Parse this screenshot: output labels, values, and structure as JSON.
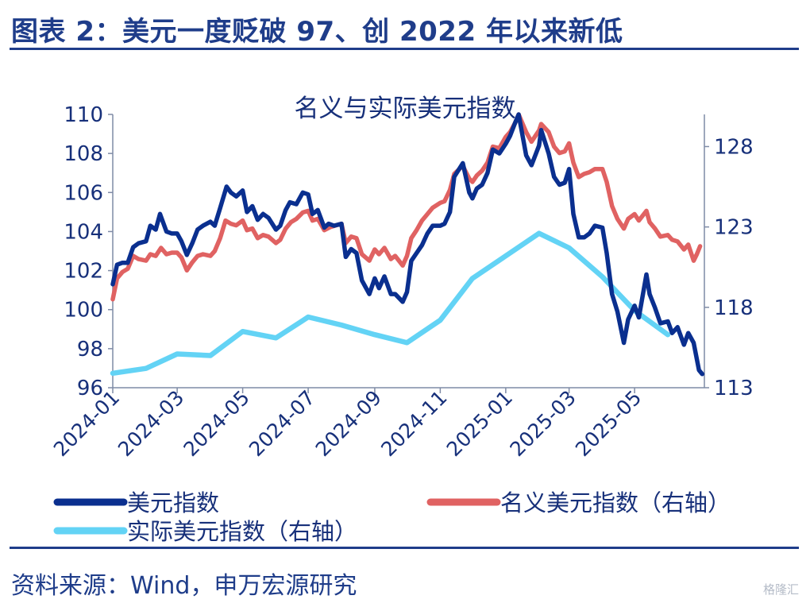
{
  "figure": {
    "label": "图表 2：美元一度贬破 97、创 2022 年以来新低",
    "source": "资料来源：Wind，申万宏源研究",
    "watermark": "格隆汇"
  },
  "colors": {
    "dxy": "#0a2f8f",
    "nominal": "#e06262",
    "real": "#63d3f5",
    "heading": "#1f3d8a",
    "text": "#17307a"
  },
  "chart_data": {
    "type": "line",
    "title": "名义与实际美元指数",
    "x_ticks": [
      "2024-01",
      "2024-03",
      "2024-05",
      "2024-07",
      "2024-09",
      "2024-11",
      "2025-01",
      "2025-03",
      "2025-05"
    ],
    "x_range": [
      "2024-01-01",
      "2025-07-05"
    ],
    "y_left": {
      "range": [
        96,
        110
      ],
      "ticks": [
        96,
        98,
        100,
        102,
        104,
        106,
        108,
        110
      ]
    },
    "y_right": {
      "range": [
        113,
        130
      ],
      "ticks": [
        113,
        118,
        123,
        128
      ]
    },
    "legend_position": "bottom",
    "series": [
      {
        "name": "美元指数",
        "axis": "left",
        "points": [
          [
            "2024-01-01",
            101.3
          ],
          [
            "2024-01-05",
            102.3
          ],
          [
            "2024-01-10",
            102.4
          ],
          [
            "2024-01-15",
            102.4
          ],
          [
            "2024-01-20",
            103.2
          ],
          [
            "2024-01-25",
            103.4
          ],
          [
            "2024-02-01",
            103.5
          ],
          [
            "2024-02-05",
            104.3
          ],
          [
            "2024-02-10",
            104.1
          ],
          [
            "2024-02-14",
            104.9
          ],
          [
            "2024-02-20",
            104.0
          ],
          [
            "2024-02-25",
            103.9
          ],
          [
            "2024-03-01",
            103.9
          ],
          [
            "2024-03-05",
            103.5
          ],
          [
            "2024-03-10",
            102.8
          ],
          [
            "2024-03-15",
            103.4
          ],
          [
            "2024-03-20",
            104.1
          ],
          [
            "2024-03-25",
            104.3
          ],
          [
            "2024-04-01",
            104.5
          ],
          [
            "2024-04-05",
            104.3
          ],
          [
            "2024-04-10",
            105.2
          ],
          [
            "2024-04-16",
            106.3
          ],
          [
            "2024-04-20",
            106.0
          ],
          [
            "2024-04-25",
            105.8
          ],
          [
            "2024-05-01",
            106.1
          ],
          [
            "2024-05-05",
            105.0
          ],
          [
            "2024-05-10",
            105.3
          ],
          [
            "2024-05-15",
            104.6
          ],
          [
            "2024-05-20",
            104.9
          ],
          [
            "2024-05-25",
            104.7
          ],
          [
            "2024-06-01",
            104.1
          ],
          [
            "2024-06-05",
            104.3
          ],
          [
            "2024-06-10",
            105.1
          ],
          [
            "2024-06-14",
            105.5
          ],
          [
            "2024-06-20",
            105.4
          ],
          [
            "2024-06-26",
            106.0
          ],
          [
            "2024-07-01",
            105.9
          ],
          [
            "2024-07-05",
            104.9
          ],
          [
            "2024-07-10",
            105.1
          ],
          [
            "2024-07-16",
            104.2
          ],
          [
            "2024-07-20",
            104.4
          ],
          [
            "2024-07-25",
            104.3
          ],
          [
            "2024-08-01",
            104.4
          ],
          [
            "2024-08-05",
            102.7
          ],
          [
            "2024-08-10",
            103.1
          ],
          [
            "2024-08-15",
            102.9
          ],
          [
            "2024-08-20",
            101.5
          ],
          [
            "2024-08-27",
            100.8
          ],
          [
            "2024-09-01",
            101.6
          ],
          [
            "2024-09-05",
            101.1
          ],
          [
            "2024-09-10",
            101.7
          ],
          [
            "2024-09-16",
            100.8
          ],
          [
            "2024-09-20",
            100.8
          ],
          [
            "2024-09-27",
            100.4
          ],
          [
            "2024-10-01",
            100.9
          ],
          [
            "2024-10-05",
            102.5
          ],
          [
            "2024-10-10",
            102.9
          ],
          [
            "2024-10-15",
            103.3
          ],
          [
            "2024-10-20",
            103.9
          ],
          [
            "2024-10-25",
            104.3
          ],
          [
            "2024-11-01",
            104.3
          ],
          [
            "2024-11-05",
            104.4
          ],
          [
            "2024-11-10",
            105.0
          ],
          [
            "2024-11-14",
            106.8
          ],
          [
            "2024-11-22",
            107.5
          ],
          [
            "2024-11-28",
            106.0
          ],
          [
            "2024-12-01",
            105.7
          ],
          [
            "2024-12-05",
            106.2
          ],
          [
            "2024-12-10",
            106.4
          ],
          [
            "2024-12-15",
            107.0
          ],
          [
            "2024-12-20",
            108.2
          ],
          [
            "2024-12-26",
            108.0
          ],
          [
            "2025-01-01",
            108.5
          ],
          [
            "2025-01-05",
            108.9
          ],
          [
            "2025-01-10",
            109.6
          ],
          [
            "2025-01-13",
            110.0
          ],
          [
            "2025-01-20",
            107.9
          ],
          [
            "2025-01-25",
            107.4
          ],
          [
            "2025-02-01",
            108.4
          ],
          [
            "2025-02-03",
            109.2
          ],
          [
            "2025-02-10",
            108.0
          ],
          [
            "2025-02-15",
            106.8
          ],
          [
            "2025-02-20",
            106.4
          ],
          [
            "2025-02-25",
            106.5
          ],
          [
            "2025-03-01",
            107.2
          ],
          [
            "2025-03-05",
            104.9
          ],
          [
            "2025-03-10",
            103.7
          ],
          [
            "2025-03-15",
            103.7
          ],
          [
            "2025-03-20",
            103.9
          ],
          [
            "2025-03-25",
            104.3
          ],
          [
            "2025-04-01",
            104.2
          ],
          [
            "2025-04-05",
            102.9
          ],
          [
            "2025-04-10",
            100.8
          ],
          [
            "2025-04-15",
            99.9
          ],
          [
            "2025-04-21",
            98.3
          ],
          [
            "2025-04-25",
            99.5
          ],
          [
            "2025-05-01",
            100.2
          ],
          [
            "2025-05-05",
            99.6
          ],
          [
            "2025-05-12",
            101.8
          ],
          [
            "2025-05-15",
            100.8
          ],
          [
            "2025-05-20",
            100.1
          ],
          [
            "2025-05-25",
            99.3
          ],
          [
            "2025-06-01",
            99.4
          ],
          [
            "2025-06-05",
            98.8
          ],
          [
            "2025-06-10",
            99.1
          ],
          [
            "2025-06-16",
            98.2
          ],
          [
            "2025-06-20",
            98.8
          ],
          [
            "2025-06-25",
            98.3
          ],
          [
            "2025-06-30",
            96.9
          ],
          [
            "2025-07-03",
            96.7
          ]
        ]
      },
      {
        "name": "名义美元指数（右轴）",
        "axis": "right",
        "points": [
          [
            "2024-01-01",
            118.5
          ],
          [
            "2024-01-05",
            119.8
          ],
          [
            "2024-01-10",
            120.2
          ],
          [
            "2024-01-15",
            120.4
          ],
          [
            "2024-01-20",
            121.2
          ],
          [
            "2024-01-25",
            121.0
          ],
          [
            "2024-02-01",
            120.9
          ],
          [
            "2024-02-05",
            121.3
          ],
          [
            "2024-02-10",
            121.2
          ],
          [
            "2024-02-15",
            121.7
          ],
          [
            "2024-02-20",
            121.3
          ],
          [
            "2024-02-25",
            121.4
          ],
          [
            "2024-03-01",
            121.4
          ],
          [
            "2024-03-05",
            121.1
          ],
          [
            "2024-03-10",
            120.3
          ],
          [
            "2024-03-15",
            120.8
          ],
          [
            "2024-03-20",
            121.2
          ],
          [
            "2024-03-25",
            121.3
          ],
          [
            "2024-04-01",
            121.2
          ],
          [
            "2024-04-05",
            121.5
          ],
          [
            "2024-04-10",
            122.3
          ],
          [
            "2024-04-15",
            123.4
          ],
          [
            "2024-04-20",
            123.2
          ],
          [
            "2024-04-25",
            123.1
          ],
          [
            "2024-05-01",
            123.4
          ],
          [
            "2024-05-05",
            122.8
          ],
          [
            "2024-05-10",
            122.9
          ],
          [
            "2024-05-15",
            122.3
          ],
          [
            "2024-05-20",
            122.5
          ],
          [
            "2024-05-25",
            122.4
          ],
          [
            "2024-06-01",
            122.0
          ],
          [
            "2024-06-05",
            122.2
          ],
          [
            "2024-06-10",
            122.9
          ],
          [
            "2024-06-15",
            123.3
          ],
          [
            "2024-06-20",
            123.5
          ],
          [
            "2024-06-26",
            123.9
          ],
          [
            "2024-07-01",
            124.0
          ],
          [
            "2024-07-05",
            123.4
          ],
          [
            "2024-07-10",
            123.5
          ],
          [
            "2024-07-16",
            122.8
          ],
          [
            "2024-07-22",
            123.0
          ],
          [
            "2024-07-27",
            123.1
          ],
          [
            "2024-08-01",
            123.2
          ],
          [
            "2024-08-05",
            122.0
          ],
          [
            "2024-08-10",
            122.4
          ],
          [
            "2024-08-15",
            122.3
          ],
          [
            "2024-08-20",
            121.3
          ],
          [
            "2024-08-27",
            120.9
          ],
          [
            "2024-09-01",
            121.6
          ],
          [
            "2024-09-05",
            121.3
          ],
          [
            "2024-09-10",
            121.7
          ],
          [
            "2024-09-16",
            121.0
          ],
          [
            "2024-09-20",
            121.2
          ],
          [
            "2024-09-27",
            120.6
          ],
          [
            "2024-10-01",
            121.2
          ],
          [
            "2024-10-05",
            122.3
          ],
          [
            "2024-10-10",
            122.8
          ],
          [
            "2024-10-15",
            123.4
          ],
          [
            "2024-10-20",
            123.8
          ],
          [
            "2024-10-25",
            124.2
          ],
          [
            "2024-11-01",
            124.5
          ],
          [
            "2024-11-05",
            124.6
          ],
          [
            "2024-11-10",
            125.3
          ],
          [
            "2024-11-14",
            126.3
          ],
          [
            "2024-11-22",
            126.8
          ],
          [
            "2024-11-28",
            126.0
          ],
          [
            "2024-12-01",
            125.8
          ],
          [
            "2024-12-05",
            126.2
          ],
          [
            "2024-12-10",
            126.5
          ],
          [
            "2024-12-15",
            127.0
          ],
          [
            "2024-12-20",
            128.0
          ],
          [
            "2024-12-26",
            127.9
          ],
          [
            "2025-01-01",
            128.6
          ],
          [
            "2025-01-05",
            128.9
          ],
          [
            "2025-01-10",
            129.5
          ],
          [
            "2025-01-13",
            130.0
          ],
          [
            "2025-01-20",
            128.9
          ],
          [
            "2025-01-25",
            128.3
          ],
          [
            "2025-02-01",
            129.0
          ],
          [
            "2025-02-03",
            129.4
          ],
          [
            "2025-02-10",
            128.9
          ],
          [
            "2025-02-15",
            128.0
          ],
          [
            "2025-02-20",
            127.6
          ],
          [
            "2025-02-25",
            127.7
          ],
          [
            "2025-03-01",
            128.2
          ],
          [
            "2025-03-05",
            127.0
          ],
          [
            "2025-03-10",
            126.1
          ],
          [
            "2025-03-15",
            126.3
          ],
          [
            "2025-03-20",
            126.4
          ],
          [
            "2025-03-25",
            126.6
          ],
          [
            "2025-04-01",
            126.6
          ],
          [
            "2025-04-05",
            125.8
          ],
          [
            "2025-04-10",
            124.3
          ],
          [
            "2025-04-15",
            123.5
          ],
          [
            "2025-04-21",
            122.9
          ],
          [
            "2025-04-25",
            123.5
          ],
          [
            "2025-05-01",
            123.8
          ],
          [
            "2025-05-05",
            123.4
          ],
          [
            "2025-05-12",
            124.0
          ],
          [
            "2025-05-15",
            123.3
          ],
          [
            "2025-05-20",
            122.9
          ],
          [
            "2025-05-25",
            122.4
          ],
          [
            "2025-06-01",
            122.5
          ],
          [
            "2025-06-05",
            122.2
          ],
          [
            "2025-06-10",
            122.1
          ],
          [
            "2025-06-16",
            121.6
          ],
          [
            "2025-06-20",
            121.9
          ],
          [
            "2025-06-25",
            120.9
          ],
          [
            "2025-06-28",
            121.3
          ],
          [
            "2025-07-01",
            121.8
          ]
        ]
      },
      {
        "name": "实际美元指数（右轴）",
        "axis": "right",
        "points": [
          [
            "2024-01-01",
            113.9
          ],
          [
            "2024-02-01",
            114.2
          ],
          [
            "2024-03-01",
            115.1
          ],
          [
            "2024-04-01",
            115.0
          ],
          [
            "2024-05-01",
            116.5
          ],
          [
            "2024-06-01",
            116.1
          ],
          [
            "2024-07-01",
            117.4
          ],
          [
            "2024-08-01",
            116.9
          ],
          [
            "2024-09-01",
            116.3
          ],
          [
            "2024-10-01",
            115.8
          ],
          [
            "2024-11-01",
            117.2
          ],
          [
            "2024-12-01",
            119.8
          ],
          [
            "2025-01-01",
            121.2
          ],
          [
            "2025-02-01",
            122.6
          ],
          [
            "2025-03-01",
            121.7
          ],
          [
            "2025-04-01",
            119.9
          ],
          [
            "2025-05-01",
            117.8
          ],
          [
            "2025-06-01",
            116.3
          ]
        ]
      }
    ]
  }
}
